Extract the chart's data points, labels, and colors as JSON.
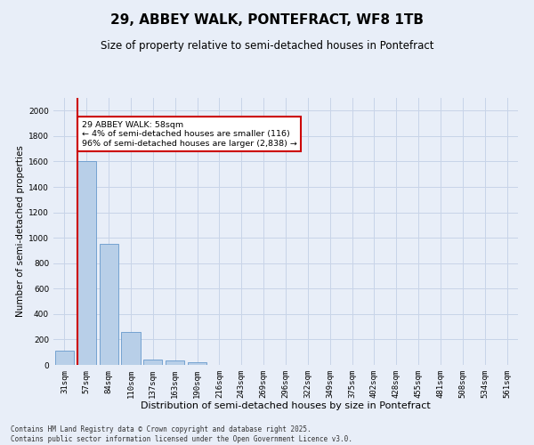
{
  "title": "29, ABBEY WALK, PONTEFRACT, WF8 1TB",
  "subtitle": "Size of property relative to semi-detached houses in Pontefract",
  "xlabel": "Distribution of semi-detached houses by size in Pontefract",
  "ylabel": "Number of semi-detached properties",
  "categories": [
    "31sqm",
    "57sqm",
    "84sqm",
    "110sqm",
    "137sqm",
    "163sqm",
    "190sqm",
    "216sqm",
    "243sqm",
    "269sqm",
    "296sqm",
    "322sqm",
    "349sqm",
    "375sqm",
    "402sqm",
    "428sqm",
    "455sqm",
    "481sqm",
    "508sqm",
    "534sqm",
    "561sqm"
  ],
  "values": [
    110,
    1600,
    950,
    260,
    40,
    35,
    20,
    0,
    0,
    0,
    0,
    0,
    0,
    0,
    0,
    0,
    0,
    0,
    0,
    0,
    0
  ],
  "bar_color": "#b8cfe8",
  "bar_edge_color": "#6699cc",
  "grid_color": "#c8d4e8",
  "background_color": "#e8eef8",
  "vline_color": "#cc0000",
  "annotation_text": "29 ABBEY WALK: 58sqm\n← 4% of semi-detached houses are smaller (116)\n96% of semi-detached houses are larger (2,838) →",
  "annotation_box_color": "#ffffff",
  "annotation_box_edge": "#cc0000",
  "ylim": [
    0,
    2100
  ],
  "yticks": [
    0,
    200,
    400,
    600,
    800,
    1000,
    1200,
    1400,
    1600,
    1800,
    2000
  ],
  "footer": "Contains HM Land Registry data © Crown copyright and database right 2025.\nContains public sector information licensed under the Open Government Licence v3.0.",
  "title_fontsize": 11,
  "subtitle_fontsize": 8.5,
  "xlabel_fontsize": 8,
  "ylabel_fontsize": 7.5,
  "tick_fontsize": 6.5,
  "footer_fontsize": 5.5
}
